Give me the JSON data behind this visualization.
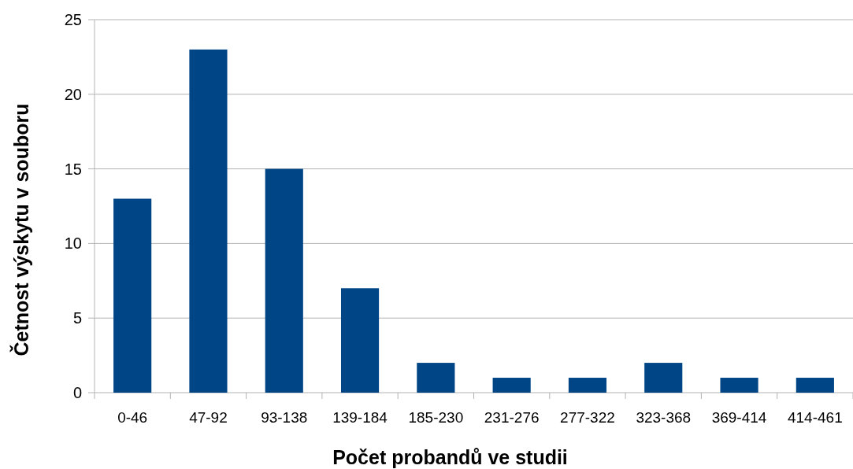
{
  "chart_data": {
    "type": "bar",
    "xlabel": "Počet probandů ve studii",
    "ylabel": "Četnost výskytu v souboru",
    "categories": [
      "0-46",
      "47-92",
      "93-138",
      "139-184",
      "185-230",
      "231-276",
      "277-322",
      "323-368",
      "369-414",
      "414-461"
    ],
    "values": [
      13,
      23,
      15,
      7,
      2,
      1,
      1,
      2,
      1,
      1
    ],
    "color": "#004586",
    "ylim": [
      0,
      25
    ],
    "yticks": [
      0,
      5,
      10,
      15,
      20,
      25
    ],
    "grid": "y"
  }
}
